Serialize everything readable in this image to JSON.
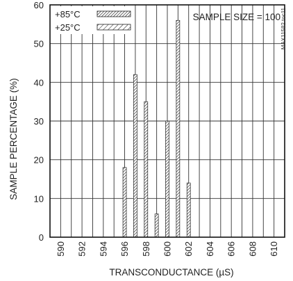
{
  "chart_data": {
    "type": "bar",
    "title": "",
    "xlabel": "TRANSCONDUCTANCE (µS)",
    "ylabel": "SAMPLE PERCENTAGE (%)",
    "annotation": "SAMPLE SIZE = 100",
    "figure_id": "MAX11582 toc11",
    "xlim": [
      589,
      611
    ],
    "ylim": [
      0,
      60
    ],
    "x_ticks": [
      "590",
      "592",
      "594",
      "596",
      "598",
      "600",
      "602",
      "604",
      "606",
      "608",
      "610"
    ],
    "y_ticks": [
      "0",
      "10",
      "20",
      "30",
      "40",
      "50",
      "60"
    ],
    "grid": true,
    "legend_position": "top-left",
    "series": [
      {
        "name": "+85°C",
        "pattern": "hatched-dense",
        "points": [
          {
            "x": 596,
            "y": 18
          },
          {
            "x": 597,
            "y": 42
          },
          {
            "x": 598,
            "y": 35
          },
          {
            "x": 599,
            "y": 6
          },
          {
            "x": 600,
            "y": 30
          },
          {
            "x": 601,
            "y": 56
          },
          {
            "x": 602,
            "y": 14
          }
        ]
      },
      {
        "name": "+25°C",
        "pattern": "hatched-sparse",
        "points": []
      }
    ]
  }
}
